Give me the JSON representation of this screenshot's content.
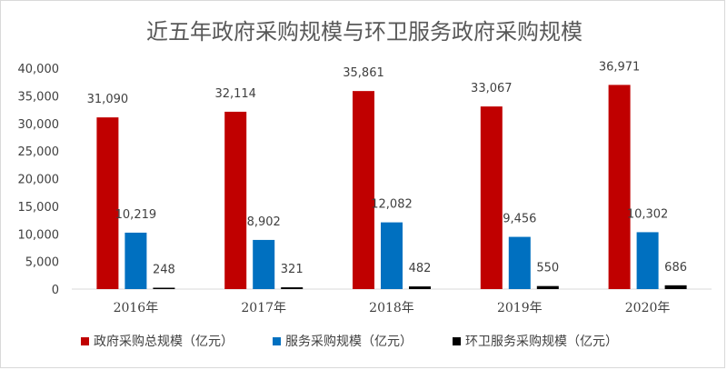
{
  "chart_data": {
    "type": "bar",
    "title": "近五年政府采购规模与环卫服务政府采购规模",
    "xlabel": "",
    "ylabel": "",
    "categories": [
      "2016年",
      "2017年",
      "2018年",
      "2019年",
      "2020年"
    ],
    "ylim": [
      0,
      40000
    ],
    "yticks": [
      "0",
      "5,000",
      "10,000",
      "15,000",
      "20,000",
      "25,000",
      "30,000",
      "35,000",
      "40,000"
    ],
    "grid": false,
    "legend_position": "bottom",
    "series": [
      {
        "name": "政府采购总规模（亿元）",
        "color": "#c00000",
        "values": [
          31090,
          32114,
          35861,
          33067,
          36971
        ],
        "labels": [
          "31,090",
          "32,114",
          "35,861",
          "33,067",
          "36,971"
        ]
      },
      {
        "name": "服务采购规模（亿元）",
        "color": "#0070c0",
        "values": [
          10219,
          8902,
          12082,
          9456,
          10302
        ],
        "labels": [
          "10,219",
          "8,902",
          "12,082",
          "9,456",
          "10,302"
        ]
      },
      {
        "name": "环卫服务采购规模（亿元）",
        "color": "#000000",
        "values": [
          248,
          321,
          482,
          550,
          686
        ],
        "labels": [
          "248",
          "321",
          "482",
          "550",
          "686"
        ]
      }
    ]
  }
}
